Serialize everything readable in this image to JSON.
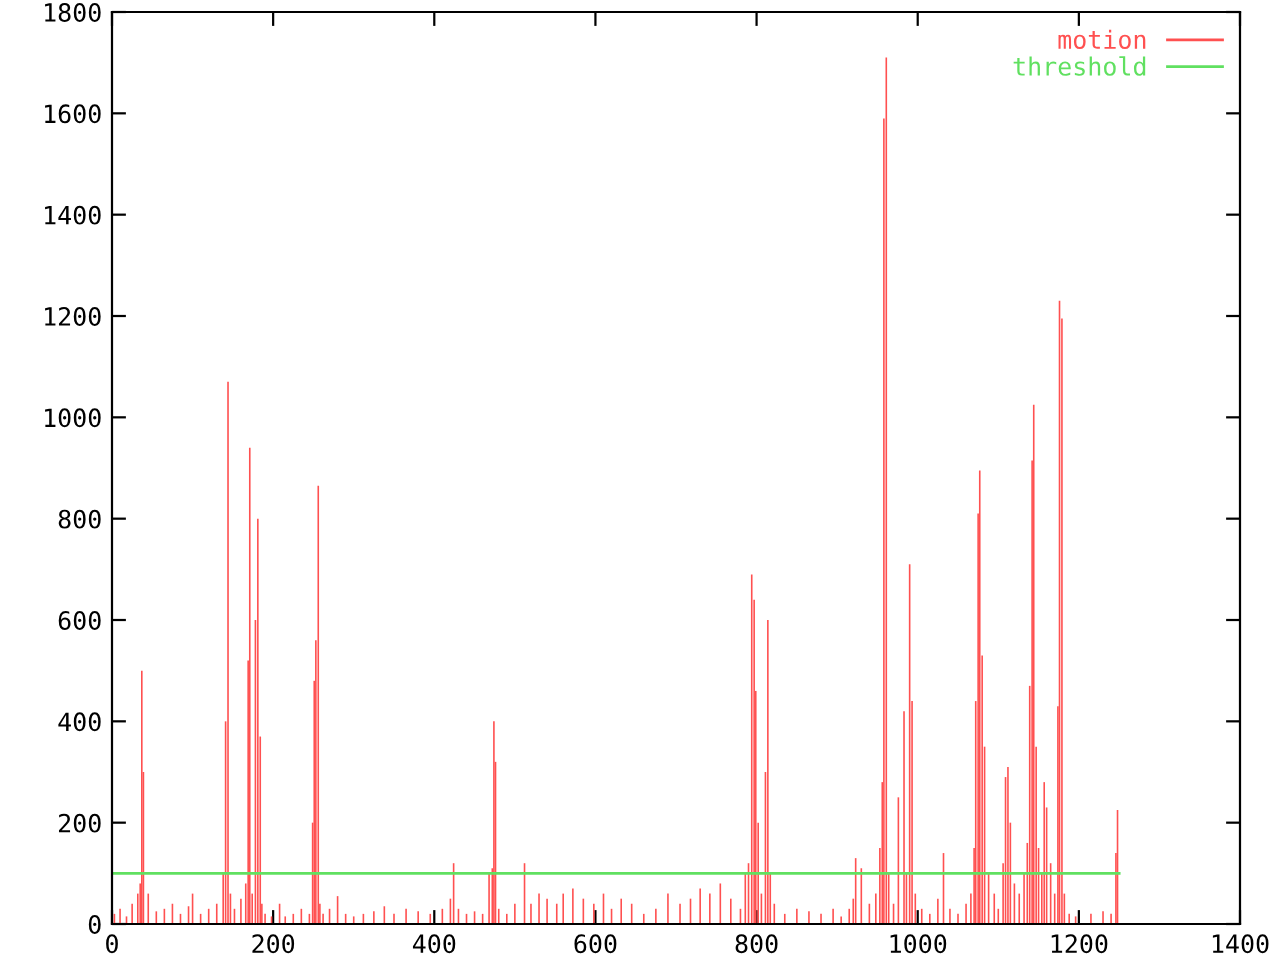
{
  "chart_data": {
    "type": "bar",
    "xlim": [
      0,
      1400
    ],
    "ylim": [
      0,
      1800
    ],
    "xticks": [
      0,
      200,
      400,
      600,
      800,
      1000,
      1200,
      1400
    ],
    "yticks": [
      0,
      200,
      400,
      600,
      800,
      1000,
      1200,
      1400,
      1600,
      1800
    ],
    "grid": false,
    "legend": "top right",
    "series": [
      {
        "name": "motion",
        "color": "#ff5050",
        "x": [
          3,
          10,
          18,
          25,
          32,
          35,
          37,
          39,
          45,
          55,
          65,
          75,
          85,
          95,
          100,
          110,
          120,
          130,
          138,
          141,
          144,
          147,
          152,
          160,
          166,
          169,
          171,
          174,
          178,
          181,
          184,
          186,
          190,
          198,
          208,
          215,
          225,
          235,
          245,
          249,
          251,
          253,
          256,
          258,
          262,
          270,
          280,
          290,
          300,
          312,
          325,
          338,
          350,
          365,
          380,
          395,
          410,
          420,
          424,
          430,
          440,
          450,
          460,
          468,
          472,
          474,
          476,
          480,
          490,
          500,
          512,
          520,
          530,
          540,
          552,
          560,
          572,
          585,
          598,
          610,
          620,
          632,
          645,
          660,
          675,
          690,
          705,
          718,
          730,
          742,
          755,
          768,
          780,
          786,
          790,
          794,
          797,
          799,
          802,
          806,
          811,
          814,
          817,
          822,
          835,
          850,
          865,
          880,
          895,
          905,
          915,
          920,
          923,
          930,
          940,
          948,
          953,
          956,
          958,
          961,
          964,
          970,
          976,
          983,
          986,
          990,
          993,
          997,
          1005,
          1015,
          1025,
          1032,
          1040,
          1050,
          1060,
          1066,
          1070,
          1072,
          1075,
          1077,
          1080,
          1083,
          1088,
          1095,
          1100,
          1106,
          1109,
          1112,
          1115,
          1120,
          1126,
          1132,
          1136,
          1139,
          1142,
          1144,
          1147,
          1150,
          1154,
          1157,
          1160,
          1165,
          1170,
          1174,
          1176,
          1179,
          1182,
          1188,
          1196,
          1215,
          1230,
          1240,
          1246,
          1248
        ],
        "values": [
          20,
          30,
          15,
          40,
          60,
          80,
          500,
          300,
          60,
          25,
          30,
          40,
          20,
          35,
          60,
          20,
          30,
          40,
          100,
          400,
          1070,
          60,
          30,
          50,
          80,
          520,
          940,
          60,
          600,
          800,
          370,
          40,
          20,
          15,
          40,
          15,
          20,
          30,
          20,
          200,
          480,
          560,
          865,
          40,
          20,
          30,
          55,
          20,
          15,
          20,
          25,
          35,
          20,
          30,
          25,
          20,
          30,
          50,
          120,
          30,
          20,
          25,
          20,
          100,
          110,
          400,
          320,
          30,
          20,
          40,
          120,
          40,
          60,
          50,
          40,
          60,
          70,
          50,
          40,
          60,
          30,
          50,
          40,
          20,
          30,
          60,
          40,
          50,
          70,
          60,
          80,
          50,
          30,
          100,
          120,
          690,
          640,
          460,
          200,
          60,
          300,
          600,
          100,
          40,
          20,
          30,
          25,
          20,
          30,
          15,
          30,
          50,
          130,
          110,
          40,
          60,
          150,
          280,
          1590,
          1710,
          100,
          40,
          250,
          420,
          100,
          710,
          440,
          60,
          30,
          20,
          50,
          140,
          30,
          20,
          40,
          60,
          150,
          440,
          810,
          895,
          530,
          350,
          100,
          60,
          30,
          120,
          290,
          310,
          200,
          80,
          60,
          100,
          160,
          470,
          915,
          1025,
          350,
          150,
          100,
          280,
          230,
          120,
          60,
          430,
          1230,
          1195,
          60,
          20,
          15,
          20,
          25,
          20,
          140,
          225
        ]
      },
      {
        "name": "threshold",
        "color": "#60e060",
        "type": "line",
        "x": [
          0,
          1250
        ],
        "values": [
          100,
          100
        ]
      }
    ]
  }
}
